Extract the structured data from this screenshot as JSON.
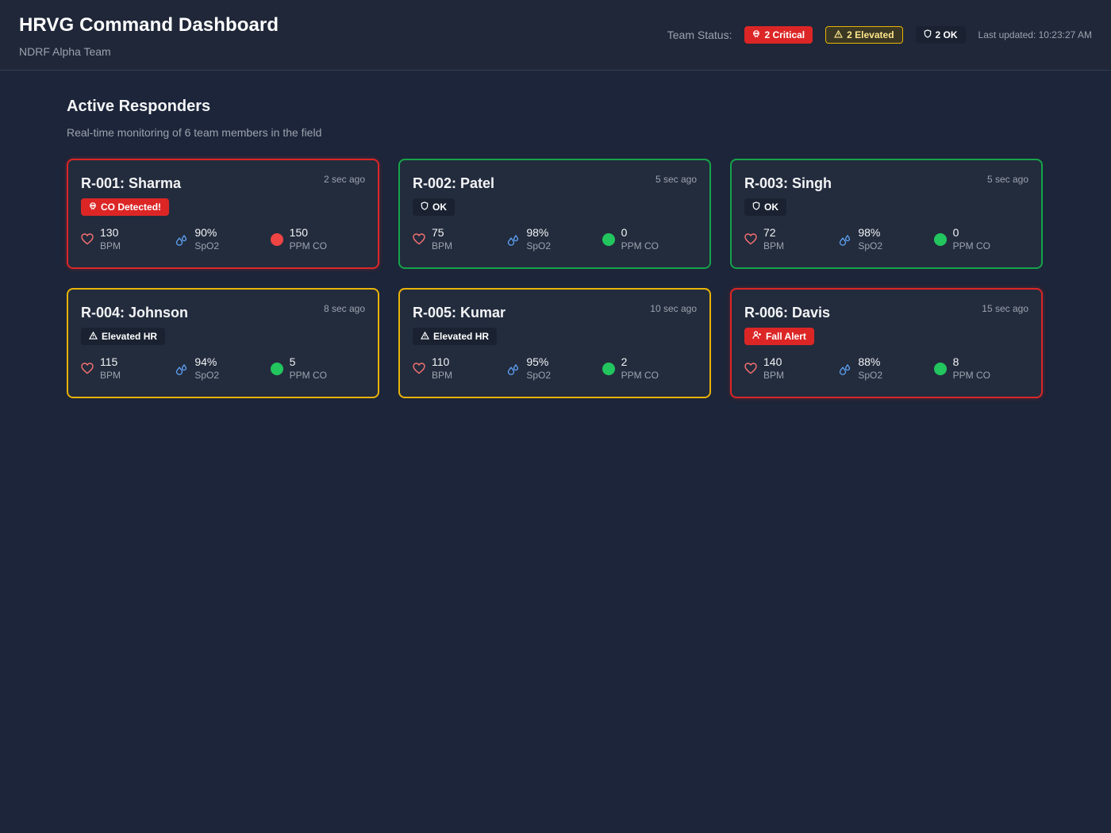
{
  "header": {
    "title": "HRVG Command Dashboard",
    "subtitle": "NDRF Alpha Team",
    "team_status_label": "Team Status:",
    "critical_pill": "2 Critical",
    "elevated_pill": "2 Elevated",
    "ok_pill": "2 OK",
    "last_updated": "Last updated: 10:23:27 AM"
  },
  "section": {
    "title": "Active Responders",
    "subtitle": "Real-time monitoring of 6 team members in the field"
  },
  "colors": {
    "critical": "#dc2626",
    "elevated": "#eab308",
    "ok": "#16a34a",
    "co_high": "#ef4444",
    "co_low": "#22c55e",
    "heart": "#f87171",
    "spo2": "#60a5fa"
  },
  "responders": [
    {
      "name": "R-001: Sharma",
      "time": "2 sec ago",
      "status": "critical",
      "badge": "CO Detected!",
      "badge_icon": "skull-icon",
      "bpm": "130",
      "bpm_unit": "BPM",
      "spo2": "90%",
      "spo2_unit": "SpO2",
      "co": "150",
      "co_unit": "PPM CO",
      "co_level": "high"
    },
    {
      "name": "R-002: Patel",
      "time": "5 sec ago",
      "status": "ok",
      "badge": "OK",
      "badge_icon": "shield-icon",
      "bpm": "75",
      "bpm_unit": "BPM",
      "spo2": "98%",
      "spo2_unit": "SpO2",
      "co": "0",
      "co_unit": "PPM CO",
      "co_level": "low"
    },
    {
      "name": "R-003: Singh",
      "time": "5 sec ago",
      "status": "ok",
      "badge": "OK",
      "badge_icon": "shield-icon",
      "bpm": "72",
      "bpm_unit": "BPM",
      "spo2": "98%",
      "spo2_unit": "SpO2",
      "co": "0",
      "co_unit": "PPM CO",
      "co_level": "low"
    },
    {
      "name": "R-004: Johnson",
      "time": "8 sec ago",
      "status": "elevated",
      "badge": "Elevated HR",
      "badge_icon": "warning-icon",
      "bpm": "115",
      "bpm_unit": "BPM",
      "spo2": "94%",
      "spo2_unit": "SpO2",
      "co": "5",
      "co_unit": "PPM CO",
      "co_level": "low"
    },
    {
      "name": "R-005: Kumar",
      "time": "10 sec ago",
      "status": "elevated",
      "badge": "Elevated HR",
      "badge_icon": "warning-icon",
      "bpm": "110",
      "bpm_unit": "BPM",
      "spo2": "95%",
      "spo2_unit": "SpO2",
      "co": "2",
      "co_unit": "PPM CO",
      "co_level": "low"
    },
    {
      "name": "R-006: Davis",
      "time": "15 sec ago",
      "status": "critical",
      "badge": "Fall Alert",
      "badge_icon": "person-fall-icon",
      "bpm": "140",
      "bpm_unit": "BPM",
      "spo2": "88%",
      "spo2_unit": "SpO2",
      "co": "8",
      "co_unit": "PPM CO",
      "co_level": "low"
    }
  ]
}
